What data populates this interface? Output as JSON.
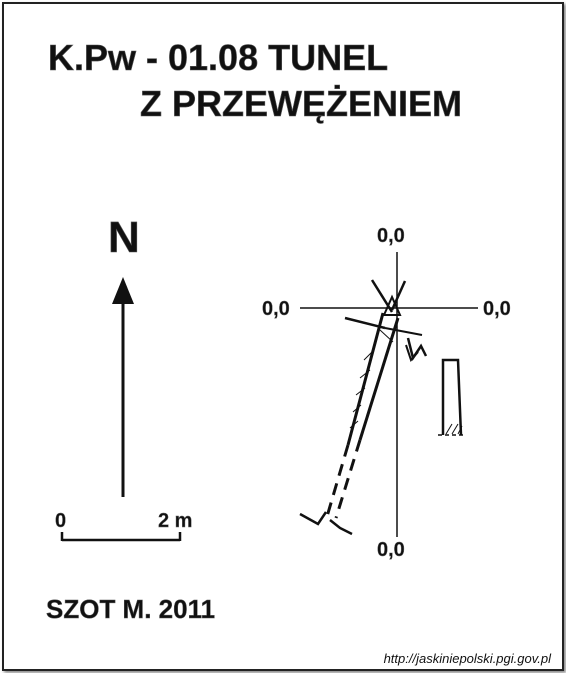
{
  "title": {
    "line1": "K.Pw - 01.08  TUNEL",
    "line2": "Z PRZEWĘŻENIEM"
  },
  "north": {
    "label": "N"
  },
  "scale": {
    "start": "0",
    "end": "2 m"
  },
  "axis_labels": {
    "top": "0,0",
    "left": "0,0",
    "right": "0,0",
    "bottom": "0,0"
  },
  "author": "SZOT M. 2011",
  "source_url": "http://jaskiniepolski.pgi.gov.pl",
  "icons": [
    "north-arrow-icon",
    "datum-triangle-icon"
  ],
  "colors": {
    "ink": "#111111",
    "background": "#ffffff"
  }
}
